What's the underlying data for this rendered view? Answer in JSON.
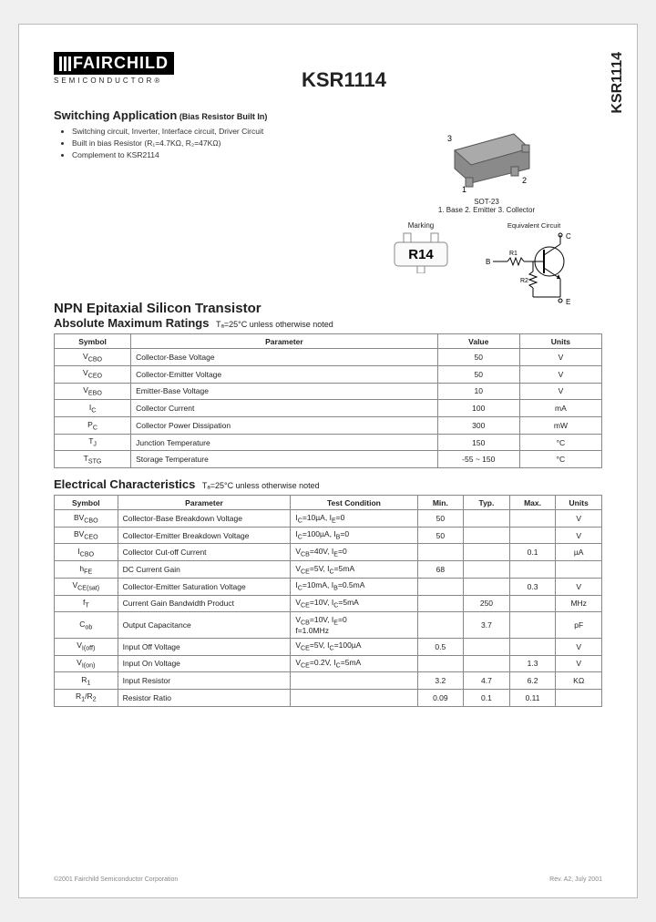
{
  "part_number": "KSR1114",
  "side_title": "KSR1114",
  "logo": {
    "name": "FAIRCHILD",
    "sub": "SEMICONDUCTOR®"
  },
  "switching": {
    "title": "Switching Application",
    "subtitle": "(Bias Resistor Built In)",
    "bullets": [
      "Switching circuit, Inverter, Interface circuit, Driver Circuit",
      "Built in bias Resistor (R₁=4.7KΩ, R₂=47KΩ)",
      "Complement to KSR2114"
    ]
  },
  "package": {
    "name": "SOT-23",
    "pins": "1. Base   2. Emitter   3. Collector",
    "marking_label": "Marking",
    "marking_code": "R14",
    "eq_label": "Equivalent Circuit",
    "pin1": "1",
    "pin2": "2",
    "pin3": "3",
    "eq_B": "B",
    "eq_C": "C",
    "eq_E": "E",
    "eq_R1": "R1",
    "eq_R2": "R2"
  },
  "type_heading": "NPN Epitaxial Silicon Transistor",
  "abs_max": {
    "title": "Absolute Maximum Ratings",
    "cond": "Tₐ=25°C unless otherwise noted",
    "columns": [
      "Symbol",
      "Parameter",
      "Value",
      "Units"
    ],
    "rows": [
      [
        "V_CBO",
        "Collector-Base Voltage",
        "50",
        "V"
      ],
      [
        "V_CEO",
        "Collector-Emitter Voltage",
        "50",
        "V"
      ],
      [
        "V_EBO",
        "Emitter-Base Voltage",
        "10",
        "V"
      ],
      [
        "I_C",
        "Collector Current",
        "100",
        "mA"
      ],
      [
        "P_C",
        "Collector Power Dissipation",
        "300",
        "mW"
      ],
      [
        "T_J",
        "Junction Temperature",
        "150",
        "°C"
      ],
      [
        "T_STG",
        "Storage Temperature",
        "-55 ~ 150",
        "°C"
      ]
    ]
  },
  "elec": {
    "title": "Electrical Characteristics",
    "cond": "Tₐ=25°C unless otherwise noted",
    "columns": [
      "Symbol",
      "Parameter",
      "Test Condition",
      "Min.",
      "Typ.",
      "Max.",
      "Units"
    ],
    "rows": [
      [
        "BV_CBO",
        "Collector-Base Breakdown Voltage",
        "I_C=10µA, I_E=0",
        "50",
        "",
        "",
        "V"
      ],
      [
        "BV_CEO",
        "Collector-Emitter Breakdown Voltage",
        "I_C=100µA, I_B=0",
        "50",
        "",
        "",
        "V"
      ],
      [
        "I_CBO",
        "Collector Cut-off Current",
        "V_CB=40V, I_E=0",
        "",
        "",
        "0.1",
        "µA"
      ],
      [
        "h_FE",
        "DC Current Gain",
        "V_CE=5V, I_C=5mA",
        "68",
        "",
        "",
        ""
      ],
      [
        "V_CE(sat)",
        "Collector-Emitter Saturation Voltage",
        "I_C=10mA, I_B=0.5mA",
        "",
        "",
        "0.3",
        "V"
      ],
      [
        "f_T",
        "Current Gain Bandwidth Product",
        "V_CE=10V, I_C=5mA",
        "",
        "250",
        "",
        "MHz"
      ],
      [
        "C_ob",
        "Output Capacitance",
        "V_CB=10V, I_E=0\nf=1.0MHz",
        "",
        "3.7",
        "",
        "pF"
      ],
      [
        "V_I(off)",
        "Input Off Voltage",
        "V_CE=5V, I_C=100µA",
        "0.5",
        "",
        "",
        "V"
      ],
      [
        "V_I(on)",
        "Input On Voltage",
        "V_CE=0.2V, I_C=5mA",
        "",
        "",
        "1.3",
        "V"
      ],
      [
        "R_1",
        "Input Resistor",
        "",
        "3.2",
        "4.7",
        "6.2",
        "KΩ"
      ],
      [
        "R_1/R_2",
        "Resistor Ratio",
        "",
        "0.09",
        "0.1",
        "0.11",
        ""
      ]
    ]
  },
  "footer": {
    "left": "©2001 Fairchild Semiconductor Corporation",
    "right": "Rev. A2, July 2001"
  },
  "colors": {
    "border": "#888888",
    "text": "#222222",
    "pkg_fill": "#8a8a8a",
    "pkg_dark": "#555555"
  }
}
